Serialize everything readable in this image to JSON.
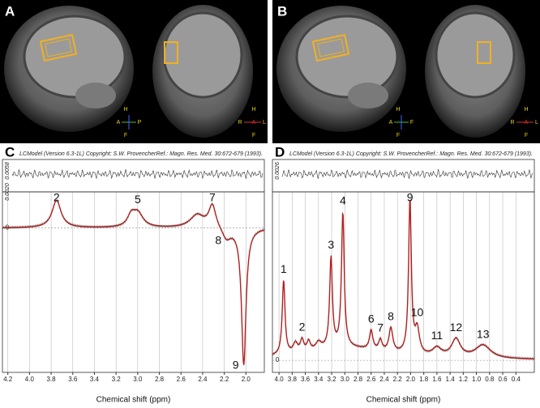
{
  "images": [
    {
      "panel": "A",
      "sagittal_orientation": [
        "H",
        "A",
        "P",
        "F"
      ],
      "coronal_orientation": [
        "H",
        "R",
        "A",
        "L",
        "F"
      ]
    },
    {
      "panel": "B",
      "sagittal_orientation": [
        "H",
        "A",
        "F",
        "F"
      ],
      "coronal_orientation": [
        "H",
        "R",
        "A",
        "L",
        "F"
      ]
    }
  ],
  "spectra": [
    {
      "panel": "C",
      "header_left": "LCModel (Version 6.3-1L) Copyright: S.W. Provencher.",
      "header_right": "Ref.: Magn. Res. Med. 30:672-679 (1993).",
      "residual_ticks": [
        "0.0058",
        "0.0020"
      ],
      "zero_label": "0",
      "xlabel": "Chemical shift (ppm)",
      "xlim": [
        4.25,
        1.83
      ],
      "ylim": [
        -1.0,
        0.25
      ],
      "xticks": [
        4.2,
        {
          "value": 4,
          "label": "4.0"
        },
        3.8,
        3.6,
        3.4,
        3.2,
        {
          "value": 3,
          "label": "3.0"
        },
        2.8,
        2.6,
        2.4,
        2.2,
        {
          "value": 2,
          "label": "2.0"
        }
      ],
      "peaks": [
        {
          "label": "2",
          "ppm": 3.75,
          "amplitude": 0.19,
          "width": 0.05
        },
        {
          "label": "5",
          "ppm": 3.0,
          "amplitude": 0.1,
          "width": 0.06
        },
        {
          "label": "7",
          "ppm": 2.31,
          "amplitude": 0.16,
          "width": 0.04
        },
        {
          "label": "8",
          "ppm": 2.18,
          "amplitude": -0.08,
          "width": 0.05
        },
        {
          "label": "9",
          "ppm": 2.02,
          "amplitude": -0.95,
          "width": 0.025
        }
      ],
      "components": [
        {
          "ppm": 3.06,
          "amplitude": 0.07,
          "width": 0.04
        },
        {
          "ppm": 2.45,
          "amplitude": 0.09,
          "width": 0.08
        }
      ]
    },
    {
      "panel": "D",
      "header_left": "LCModel (Version 6.3-1L) Copyright: S.W. Provencher.",
      "header_right": "Ref.: Magn. Res. Med. 30:672-679 (1993).",
      "residual_ticks": [
        "0.0026"
      ],
      "zero_label": "0",
      "xlabel": "Chemical shift (ppm)",
      "xlim": [
        4.1,
        0.12
      ],
      "ylim": [
        -0.1,
        1.4
      ],
      "xticks": [
        {
          "value": 4,
          "label": "4.0"
        },
        3.8,
        3.6,
        3.4,
        3.2,
        {
          "value": 3,
          "label": "3.0"
        },
        2.8,
        2.6,
        2.4,
        2.2,
        {
          "value": 2,
          "label": "2.0"
        },
        1.8,
        1.6,
        1.4,
        1.2,
        {
          "value": 1,
          "label": "1.0"
        },
        0.8,
        0.6,
        0.4
      ],
      "peaks": [
        {
          "label": "1",
          "ppm": 3.93,
          "amplitude": 0.62,
          "width": 0.025
        },
        {
          "label": "2",
          "ppm": 3.65,
          "amplitude": 0.1,
          "width": 0.03
        },
        {
          "label": "3",
          "ppm": 3.21,
          "amplitude": 0.75,
          "width": 0.025
        },
        {
          "label": "4",
          "ppm": 3.03,
          "amplitude": 1.12,
          "width": 0.025
        },
        {
          "label": "6",
          "ppm": 2.6,
          "amplitude": 0.16,
          "width": 0.03
        },
        {
          "label": "7",
          "ppm": 2.46,
          "amplitude": 0.09,
          "width": 0.03
        },
        {
          "label": "8",
          "ppm": 2.3,
          "amplitude": 0.2,
          "width": 0.035
        },
        {
          "label": "9",
          "ppm": 2.01,
          "amplitude": 1.28,
          "width": 0.025
        },
        {
          "label": "10",
          "ppm": 1.9,
          "amplitude": 0.2,
          "width": 0.04
        },
        {
          "label": "11",
          "ppm": 1.6,
          "amplitude": 0.07,
          "width": 0.08
        },
        {
          "label": "12",
          "ppm": 1.31,
          "amplitude": 0.15,
          "width": 0.08
        },
        {
          "label": "13",
          "ppm": 0.9,
          "amplitude": 0.11,
          "width": 0.14
        }
      ],
      "components": [
        {
          "ppm": 3.0,
          "amplitude": 0.1,
          "width": 0.8
        },
        {
          "ppm": 3.75,
          "amplitude": 0.08,
          "width": 0.04
        },
        {
          "ppm": 3.55,
          "amplitude": 0.08,
          "width": 0.03
        },
        {
          "ppm": 3.4,
          "amplitude": 0.06,
          "width": 0.05
        }
      ]
    }
  ]
}
